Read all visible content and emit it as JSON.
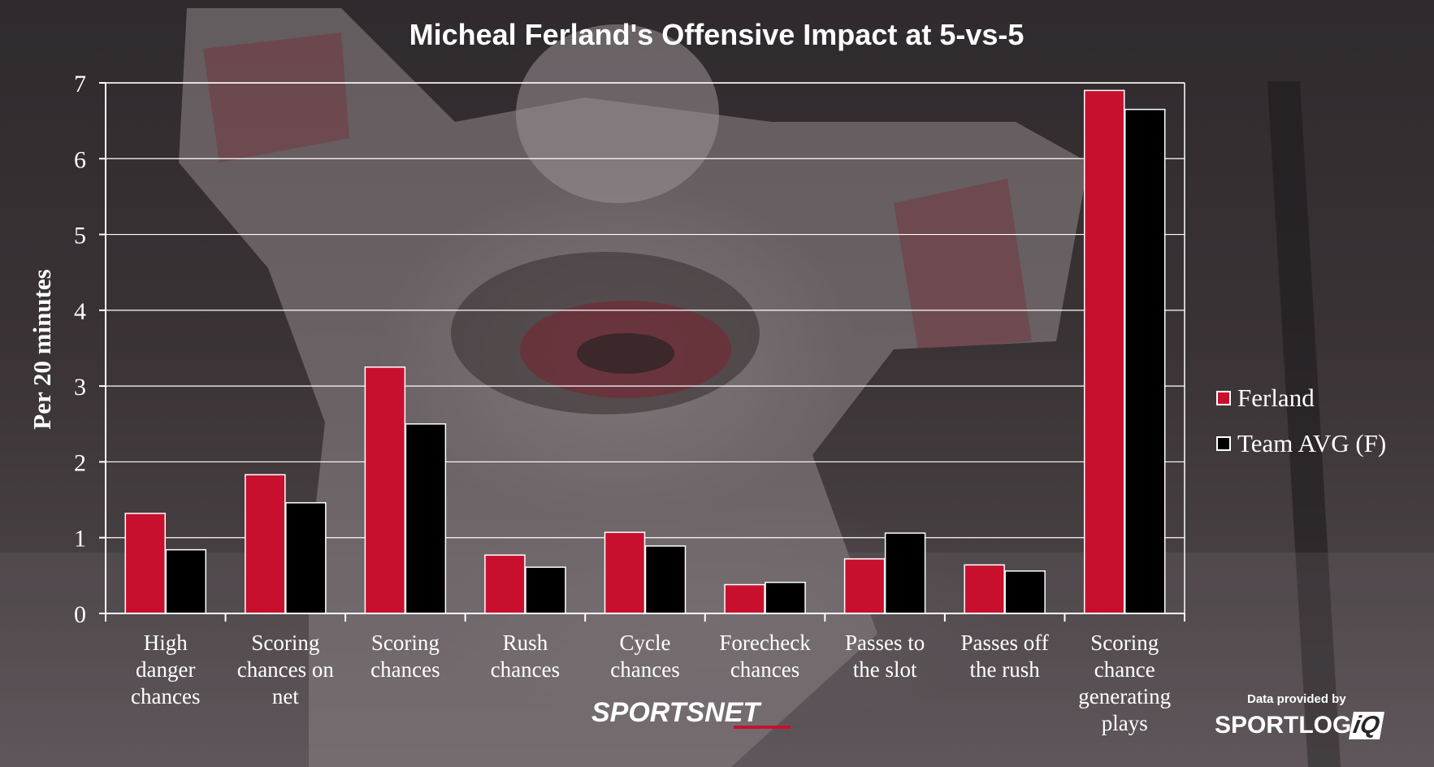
{
  "chart_data": {
    "type": "bar",
    "title": "Micheal Ferland's Offensive Impact at 5-vs-5",
    "xlabel": "",
    "ylabel": "Per 20 minutes",
    "ylim": [
      0,
      7
    ],
    "yticks": [
      "0",
      "1",
      "2",
      "3",
      "4",
      "5",
      "6",
      "7"
    ],
    "grid": true,
    "legend_position": "right",
    "categories": [
      [
        "High",
        "danger",
        "chances"
      ],
      [
        "Scoring",
        "chances on",
        "net"
      ],
      [
        "Scoring",
        "chances"
      ],
      [
        "Rush",
        "chances"
      ],
      [
        "Cycle",
        "chances"
      ],
      [
        "Forecheck",
        "chances"
      ],
      [
        "Passes to",
        "the slot"
      ],
      [
        "Passes off",
        "the rush"
      ],
      [
        "Scoring",
        "chance",
        "generating",
        "plays"
      ]
    ],
    "series": [
      {
        "name": "Ferland",
        "color": "#c8102e",
        "values": [
          1.32,
          1.83,
          3.25,
          0.77,
          1.07,
          0.38,
          0.72,
          0.64,
          6.9
        ]
      },
      {
        "name": "Team AVG (F)",
        "color": "#000000",
        "values": [
          0.84,
          1.46,
          2.5,
          0.61,
          0.89,
          0.41,
          1.06,
          0.56,
          6.65
        ]
      }
    ]
  },
  "branding": {
    "sportsnet": "SPORTSNET",
    "provided_by": "Data provided by",
    "sportlogiq": "SPORTLOG",
    "sportlogiq_iq": "iQ"
  }
}
